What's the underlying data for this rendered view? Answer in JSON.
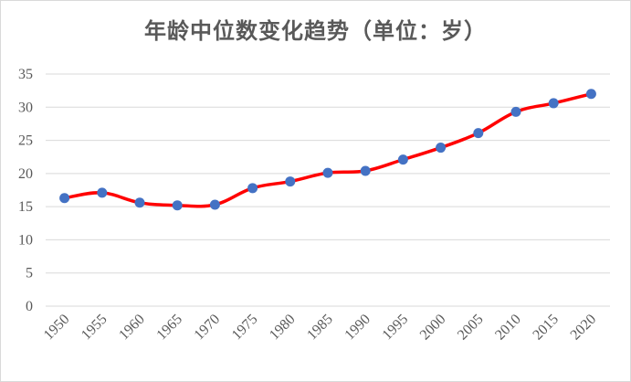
{
  "chart_data": {
    "type": "line",
    "title": "年龄中位数变化趋势（单位：岁）",
    "x": [
      "1950",
      "1955",
      "1960",
      "1965",
      "1970",
      "1975",
      "1980",
      "1985",
      "1990",
      "1995",
      "2000",
      "2005",
      "2010",
      "2015",
      "2020"
    ],
    "series": [
      {
        "values": [
          16.3,
          17.1,
          15.6,
          15.2,
          15.3,
          17.8,
          18.8,
          20.1,
          20.4,
          22.1,
          23.9,
          26.1,
          29.3,
          30.6,
          32.0
        ]
      }
    ],
    "ylim": [
      0,
      35
    ],
    "yticks": [
      "0",
      "5",
      "10",
      "15",
      "20",
      "25",
      "30",
      "35"
    ],
    "grid": true,
    "legend": "none",
    "colors": {
      "line": "#ff0000",
      "marker": "#4472c4",
      "grid": "#d9d9d9",
      "text": "#595959"
    }
  }
}
